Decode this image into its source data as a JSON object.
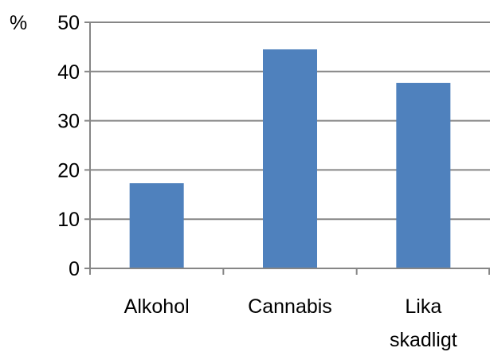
{
  "chart_data": {
    "type": "bar",
    "title": "",
    "xlabel": "",
    "ylabel": "%",
    "categories": [
      [
        "Alkohol"
      ],
      [
        "Cannabis"
      ],
      [
        "Lika",
        "skadligt"
      ]
    ],
    "series": [
      {
        "values": [
          17.3,
          44.5,
          37.7
        ]
      }
    ],
    "ylim": [
      0,
      50
    ],
    "yticks": [
      0,
      10,
      20,
      30,
      40,
      50
    ],
    "grid": true,
    "legend": "none",
    "colors": {
      "bar": "#4f81bd",
      "grid": "#868686",
      "axis": "#868686"
    }
  }
}
